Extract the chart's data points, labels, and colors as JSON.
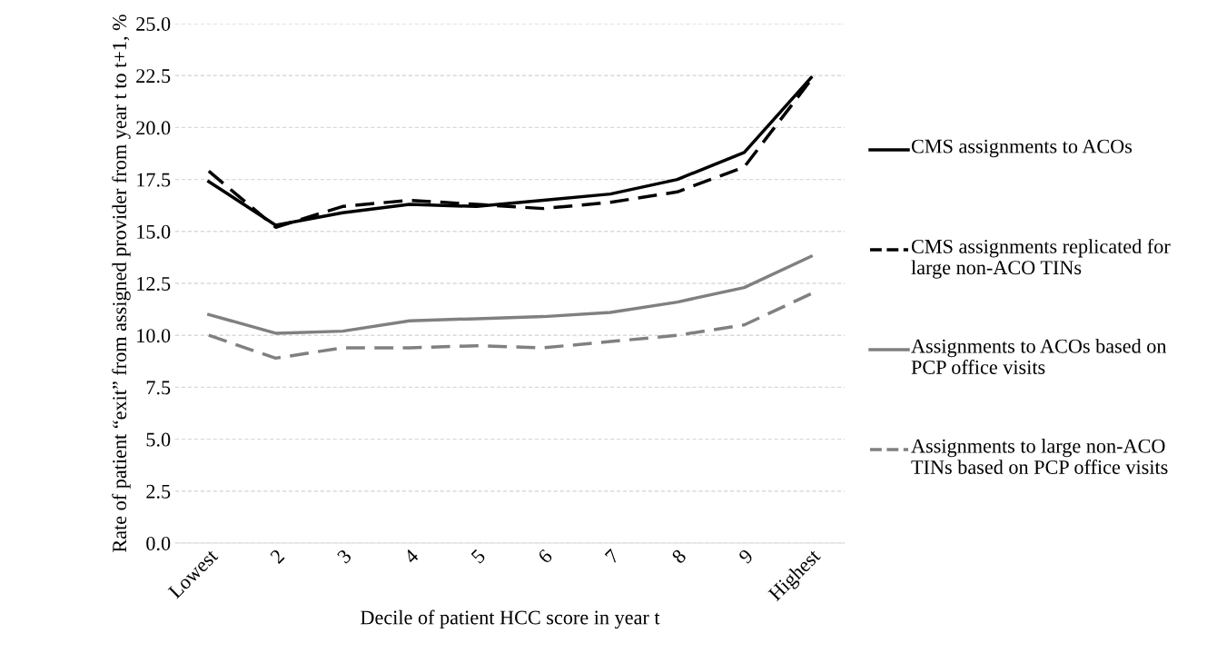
{
  "chart_data": {
    "type": "line",
    "xlabel": "Decile of patient HCC score in year t",
    "ylabel": "Rate of patient “exit” from assigned provider from year t to t+1, %",
    "categories": [
      "Lowest",
      "2",
      "3",
      "4",
      "5",
      "6",
      "7",
      "8",
      "9",
      "Highest"
    ],
    "series": [
      {
        "name": "CMS assignments to ACOs",
        "color": "#000000",
        "line_style": "solid",
        "values": [
          17.4,
          15.3,
          15.9,
          16.3,
          16.2,
          16.5,
          16.8,
          17.5,
          18.8,
          22.4
        ]
      },
      {
        "name": "CMS assignments replicated for large non-ACO TINs",
        "color": "#000000",
        "line_style": "dashed",
        "values": [
          17.9,
          15.2,
          16.2,
          16.5,
          16.3,
          16.1,
          16.4,
          16.9,
          18.1,
          22.3
        ]
      },
      {
        "name": "Assignments to ACOs based on PCP office visits",
        "color": "#808080",
        "line_style": "solid",
        "values": [
          11.0,
          10.1,
          10.2,
          10.7,
          10.8,
          10.9,
          11.1,
          11.6,
          12.3,
          13.8
        ]
      },
      {
        "name": "Assignments to large non-ACO TINs based on PCP office visits",
        "color": "#808080",
        "line_style": "dashed",
        "values": [
          10.0,
          8.9,
          9.4,
          9.4,
          9.5,
          9.4,
          9.7,
          10.0,
          10.5,
          12.0
        ]
      }
    ],
    "ylim": [
      0,
      25
    ],
    "yticks": [
      {
        "value": 0,
        "label": "0.0"
      },
      {
        "value": 2.5,
        "label": "2.5"
      },
      {
        "value": 5,
        "label": "5.0"
      },
      {
        "value": 7.5,
        "label": "7.5"
      },
      {
        "value": 10,
        "label": "10.0"
      },
      {
        "value": 12.5,
        "label": "12.5"
      },
      {
        "value": 15,
        "label": "15.0"
      },
      {
        "value": 17.5,
        "label": "17.5"
      },
      {
        "value": 20,
        "label": "20.0"
      },
      {
        "value": 22.5,
        "label": "22.5"
      },
      {
        "value": 25,
        "label": "25.0"
      }
    ],
    "grid": "y",
    "legend": "right",
    "marker": "none"
  }
}
